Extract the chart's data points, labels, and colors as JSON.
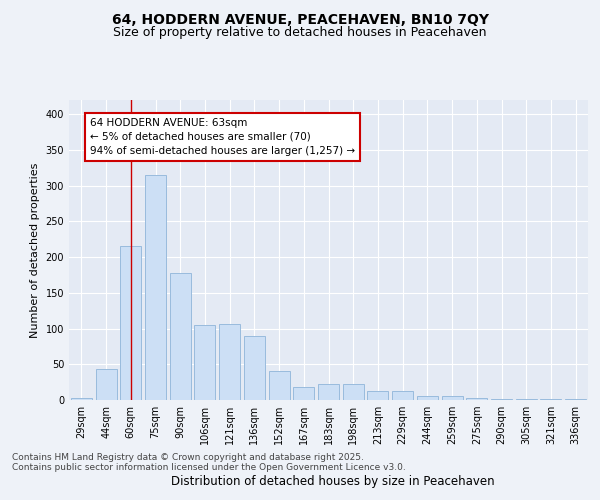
{
  "title_line1": "64, HODDERN AVENUE, PEACEHAVEN, BN10 7QY",
  "title_line2": "Size of property relative to detached houses in Peacehaven",
  "xlabel": "Distribution of detached houses by size in Peacehaven",
  "ylabel": "Number of detached properties",
  "categories": [
    "29sqm",
    "44sqm",
    "60sqm",
    "75sqm",
    "90sqm",
    "106sqm",
    "121sqm",
    "136sqm",
    "152sqm",
    "167sqm",
    "183sqm",
    "198sqm",
    "213sqm",
    "229sqm",
    "244sqm",
    "259sqm",
    "275sqm",
    "290sqm",
    "305sqm",
    "321sqm",
    "336sqm"
  ],
  "values": [
    3,
    43,
    215,
    315,
    178,
    105,
    106,
    90,
    40,
    18,
    22,
    22,
    12,
    12,
    5,
    5,
    3,
    2,
    1,
    1,
    1
  ],
  "bar_color": "#ccdff5",
  "bar_edge_color": "#99bbdd",
  "vline_color": "#cc0000",
  "vline_x": 2.0,
  "annotation_text": "64 HODDERN AVENUE: 63sqm\n← 5% of detached houses are smaller (70)\n94% of semi-detached houses are larger (1,257) →",
  "annotation_box_facecolor": "#ffffff",
  "annotation_box_edgecolor": "#cc0000",
  "ylim": [
    0,
    420
  ],
  "yticks": [
    0,
    50,
    100,
    150,
    200,
    250,
    300,
    350,
    400
  ],
  "footer_line1": "Contains HM Land Registry data © Crown copyright and database right 2025.",
  "footer_line2": "Contains public sector information licensed under the Open Government Licence v3.0.",
  "background_color": "#eef2f8",
  "plot_background_color": "#e4eaf4",
  "grid_color": "#ffffff",
  "title_fontsize": 10,
  "subtitle_fontsize": 9,
  "ylabel_fontsize": 8,
  "xlabel_fontsize": 8.5,
  "tick_fontsize": 7,
  "annotation_fontsize": 7.5,
  "footer_fontsize": 6.5
}
